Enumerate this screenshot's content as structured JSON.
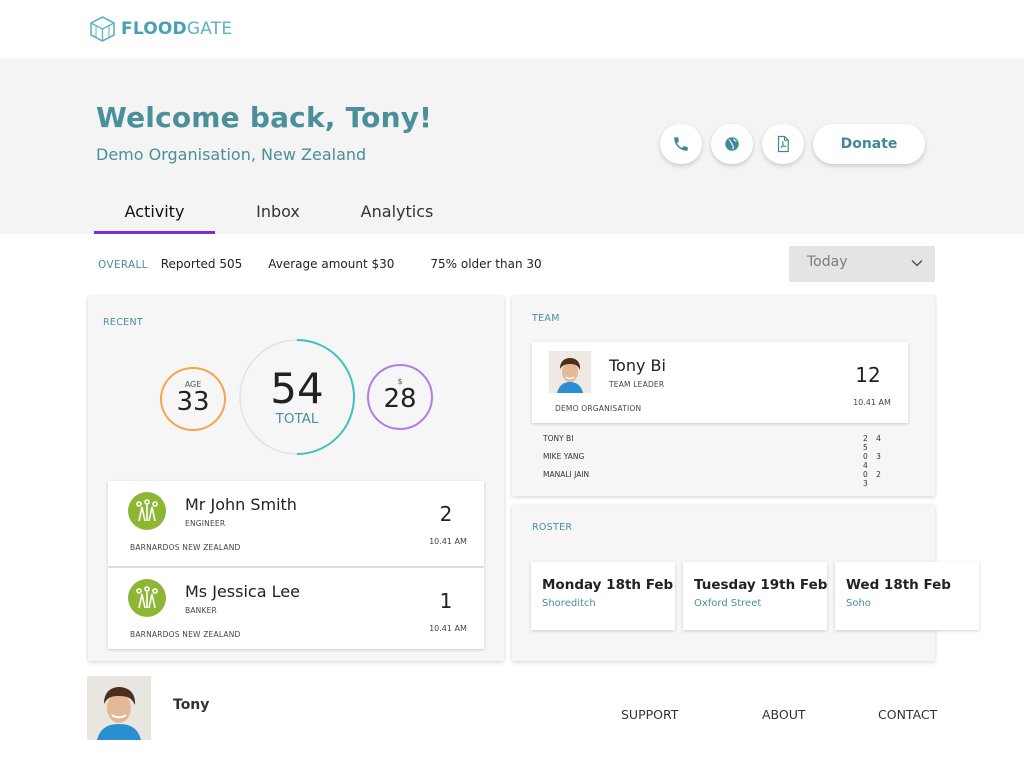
{
  "brand": {
    "name_bold": "FLOOD",
    "name_light": "GATE"
  },
  "header": {
    "welcome": "Welcome back, Tony!",
    "subtitle": "Demo Organisation, New Zealand",
    "donate_label": "Donate",
    "icons": [
      "phone-icon",
      "globe-icon",
      "pdf-icon"
    ]
  },
  "tabs": [
    {
      "label": "Activity",
      "active": true
    },
    {
      "label": "Inbox",
      "active": false
    },
    {
      "label": "Analytics",
      "active": false
    }
  ],
  "stats": {
    "label": "OVERALL",
    "reported": "Reported 505",
    "average": "Average amount $30",
    "older": "75% older than 30"
  },
  "filter": {
    "selected": "Today"
  },
  "recent": {
    "label": "RECENT",
    "age": {
      "label": "AGE",
      "value": "33"
    },
    "total": {
      "value": "54",
      "label": "TOTAL"
    },
    "amount": {
      "label": "$",
      "value": "28"
    },
    "people": [
      {
        "name": "Mr John Smith",
        "role": "ENGINEER",
        "org": "BARNARDOS NEW ZEALAND",
        "count": "2",
        "time": "10.41 AM"
      },
      {
        "name": "Ms Jessica Lee",
        "role": "BANKER",
        "org": "BARNARDOS NEW ZEALAND",
        "count": "1",
        "time": "10.41 AM"
      }
    ]
  },
  "team": {
    "label": "TEAM",
    "leader": {
      "name": "Tony Bi",
      "role": "TEAM LEADER",
      "org": "DEMO ORGANISATION",
      "count": "12",
      "time": "10.41 AM"
    },
    "members": [
      {
        "name": "TONY BI",
        "values": "2 4 5"
      },
      {
        "name": "MIKE YANG",
        "values": "0 3 4"
      },
      {
        "name": "MANALI JAIN",
        "values": "0 2 3"
      }
    ]
  },
  "roster": {
    "label": "ROSTER",
    "items": [
      {
        "date": "Monday 18th Feb",
        "location": "Shoreditch"
      },
      {
        "date": "Tuesday 19th Feb",
        "location": "Oxford Street"
      },
      {
        "date": "Wed 18th Feb",
        "location": "Soho"
      }
    ]
  },
  "footer": {
    "user_name": "Tony",
    "links": [
      "SUPPORT",
      "ABOUT",
      "CONTACT"
    ]
  },
  "colors": {
    "accent": "#4a8f99",
    "tab_underline": "#7b2fd6",
    "age_ring": "#f5a54a",
    "amount_ring": "#b57be8",
    "total_ring": "#3fc1c0"
  }
}
